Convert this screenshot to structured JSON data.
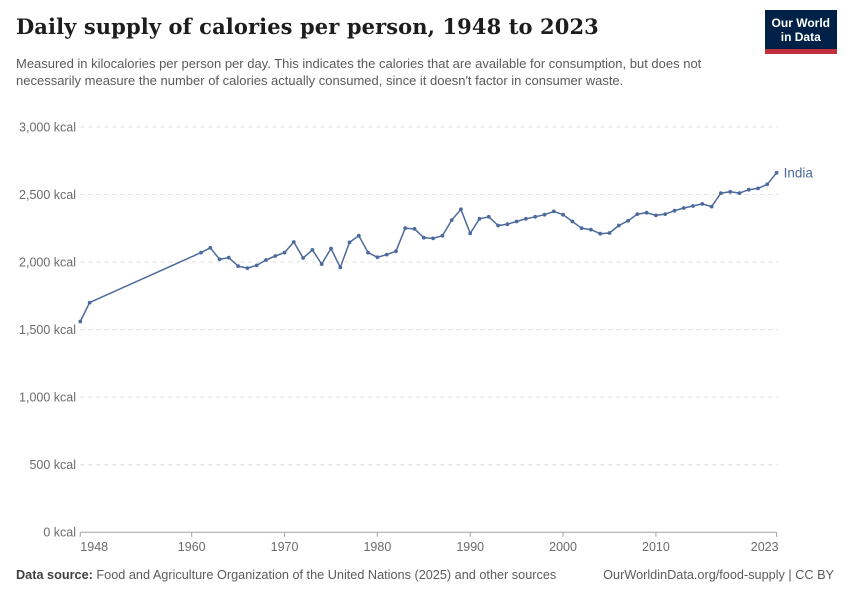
{
  "header": {
    "title": "Daily supply of calories per person, 1948 to 2023",
    "subtitle": "Measured in kilocalories per person per day. This indicates the calories that are available for consumption, but does not necessarily measure the number of calories actually consumed, since it doesn't factor in consumer waste."
  },
  "logo": {
    "line1": "Our World",
    "line2": "in Data",
    "bg_color": "#002147",
    "bar_color": "#c0303c"
  },
  "chart_data": {
    "type": "line",
    "title": "Daily supply of calories per person, 1948 to 2023",
    "xlabel": "",
    "ylabel": "",
    "xlim": [
      1948,
      2023
    ],
    "ylim": [
      0,
      3000
    ],
    "grid": true,
    "legend_position": "end-of-line-label",
    "yticks": [
      {
        "value": 0,
        "label": "0 kcal"
      },
      {
        "value": 500,
        "label": "500 kcal"
      },
      {
        "value": 1000,
        "label": "1,000 kcal"
      },
      {
        "value": 1500,
        "label": "1,500 kcal"
      },
      {
        "value": 2000,
        "label": "2,000 kcal"
      },
      {
        "value": 2500,
        "label": "2,500 kcal"
      },
      {
        "value": 3000,
        "label": "3,000 kcal"
      }
    ],
    "xticks": [
      1948,
      1960,
      1970,
      1980,
      1990,
      2000,
      2010,
      2023
    ],
    "x": [
      1948,
      1949,
      1961,
      1962,
      1963,
      1964,
      1965,
      1966,
      1967,
      1968,
      1969,
      1970,
      1971,
      1972,
      1973,
      1974,
      1975,
      1976,
      1977,
      1978,
      1979,
      1980,
      1981,
      1982,
      1983,
      1984,
      1985,
      1986,
      1987,
      1988,
      1989,
      1990,
      1991,
      1992,
      1993,
      1994,
      1995,
      1996,
      1997,
      1998,
      1999,
      2000,
      2001,
      2002,
      2003,
      2004,
      2005,
      2006,
      2007,
      2008,
      2009,
      2010,
      2011,
      2012,
      2013,
      2014,
      2015,
      2016,
      2017,
      2018,
      2019,
      2020,
      2021,
      2022,
      2023
    ],
    "series": [
      {
        "name": "India",
        "color": "#4C6A9C",
        "values": [
          1560,
          1700,
          2070,
          2105,
          2020,
          2032,
          1970,
          1955,
          1975,
          2015,
          2045,
          2070,
          2148,
          2030,
          2090,
          1985,
          2100,
          1960,
          2145,
          2195,
          2070,
          2035,
          2055,
          2080,
          2250,
          2245,
          2180,
          2175,
          2195,
          2310,
          2390,
          2212,
          2320,
          2335,
          2270,
          2280,
          2300,
          2320,
          2335,
          2350,
          2375,
          2350,
          2300,
          2250,
          2240,
          2210,
          2215,
          2270,
          2305,
          2355,
          2365,
          2345,
          2355,
          2380,
          2400,
          2415,
          2430,
          2410,
          2510,
          2520,
          2510,
          2535,
          2545,
          2575,
          2660
        ]
      }
    ]
  },
  "footer": {
    "source_label": "Data source:",
    "source_text": " Food and Agriculture Organization of the United Nations (2025) and other sources",
    "credit": "OurWorldinData.org/food-supply | CC BY"
  },
  "colors": {
    "line": "#4C6A9C",
    "grid": "#dedede",
    "axis": "#a3a3a3",
    "tick_text": "#6b6b6b"
  }
}
